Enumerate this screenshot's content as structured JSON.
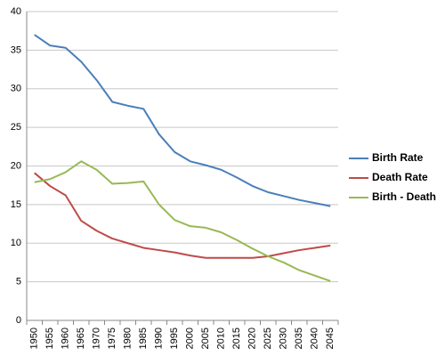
{
  "chart_data": {
    "type": "line",
    "categories": [
      "1950",
      "1955",
      "1960",
      "1965",
      "1970",
      "1975",
      "1980",
      "1985",
      "1990",
      "1995",
      "2000",
      "2005",
      "2010",
      "2015",
      "2020",
      "2025",
      "2030",
      "2035",
      "2040",
      "2045"
    ],
    "series": [
      {
        "name": "Birth Rate",
        "color": "#4a7ebb",
        "values": [
          37.0,
          35.6,
          35.3,
          33.5,
          31.1,
          28.3,
          27.8,
          27.4,
          24.1,
          21.8,
          20.6,
          20.1,
          19.5,
          18.5,
          17.4,
          16.6,
          16.1,
          15.6,
          15.2,
          14.8
        ]
      },
      {
        "name": "Death Rate",
        "color": "#be4b48",
        "values": [
          19.1,
          17.4,
          16.2,
          12.9,
          11.6,
          10.6,
          10.0,
          9.4,
          9.1,
          8.8,
          8.4,
          8.1,
          8.1,
          8.1,
          8.1,
          8.3,
          8.7,
          9.1,
          9.4,
          9.7
        ]
      },
      {
        "name": "Birth - Death",
        "color": "#98b954",
        "values": [
          17.9,
          18.3,
          19.2,
          20.6,
          19.5,
          17.7,
          17.8,
          18.0,
          15.0,
          13.0,
          12.2,
          12.0,
          11.4,
          10.4,
          9.3,
          8.3,
          7.5,
          6.5,
          5.8,
          5.1
        ]
      }
    ],
    "ylim": [
      0,
      40
    ],
    "yticks": [
      0,
      5,
      10,
      15,
      20,
      25,
      30,
      35,
      40
    ],
    "grid": true,
    "legend": "right"
  }
}
